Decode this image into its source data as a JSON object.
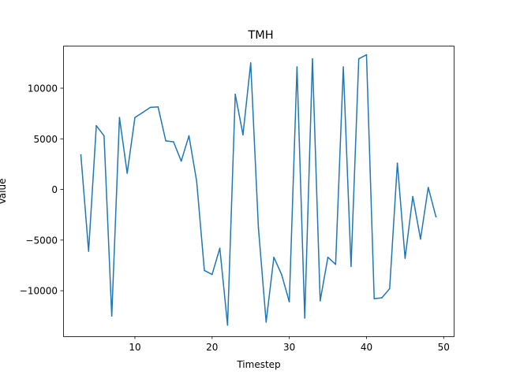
{
  "chart_data": {
    "type": "line",
    "title": "TMH",
    "xlabel": "Timestep",
    "ylabel": "Value",
    "xlim": [
      0.7,
      51.3
    ],
    "ylim": [
      -14500,
      14200
    ],
    "xticks": [
      10,
      20,
      30,
      40,
      50
    ],
    "yticks": [
      -10000,
      -5000,
      0,
      5000,
      10000
    ],
    "grid": false,
    "series": [
      {
        "color": "#1f77b4",
        "x": [
          3,
          4,
          5,
          6,
          7,
          8,
          9,
          10,
          11,
          12,
          13,
          14,
          15,
          16,
          17,
          18,
          19,
          20,
          21,
          22,
          23,
          24,
          25,
          26,
          27,
          28,
          29,
          30,
          31,
          32,
          33,
          34,
          35,
          36,
          37,
          38,
          39,
          40,
          41,
          42,
          43,
          44,
          45,
          46,
          47,
          48,
          49
        ],
        "values": [
          3400,
          -6100,
          6300,
          5300,
          -12500,
          7100,
          1600,
          7100,
          7600,
          8100,
          8150,
          4800,
          4700,
          2800,
          5300,
          800,
          -8000,
          -8400,
          -5800,
          -13400,
          9400,
          5400,
          12500,
          -3800,
          -13100,
          -6700,
          -8400,
          -11100,
          12100,
          -12700,
          12900,
          -11000,
          -6700,
          -7400,
          12100,
          -7600,
          12900,
          13300,
          -10800,
          -10700,
          -9800,
          2600,
          -6800,
          -700,
          -4900,
          200,
          -2700
        ]
      }
    ]
  }
}
